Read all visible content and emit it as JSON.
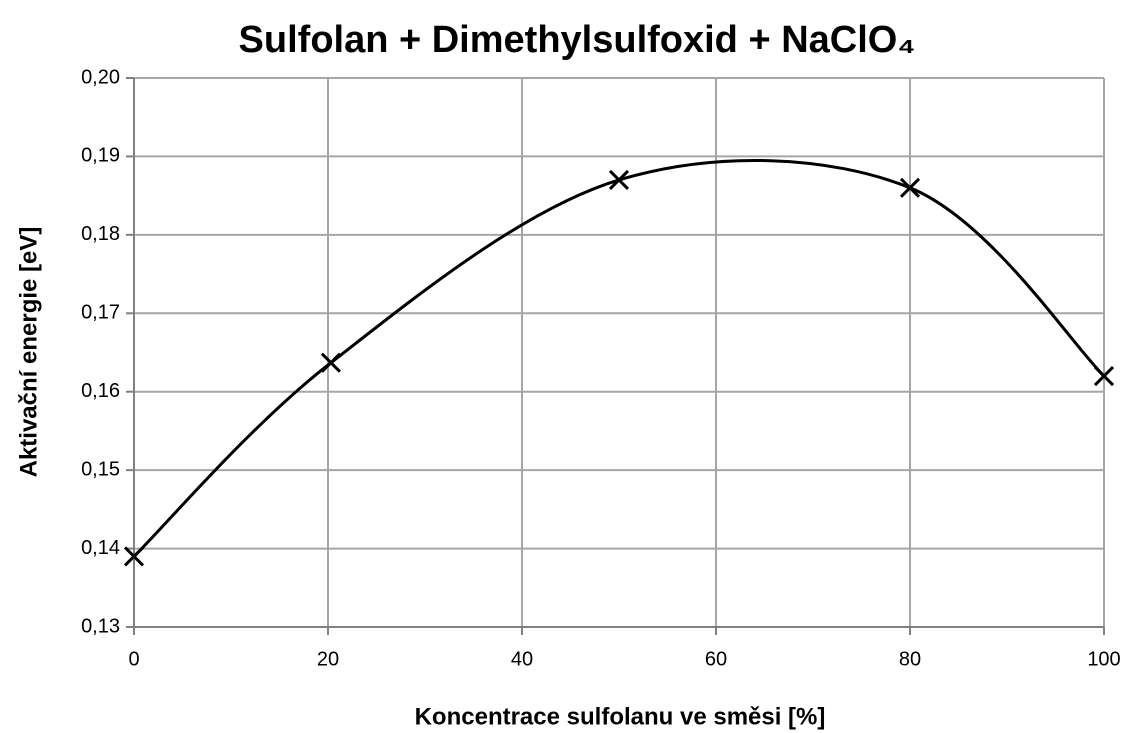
{
  "chart_data": {
    "type": "scatter",
    "title": "Sulfolan + Dimethylsulfoxid + NaClO₄",
    "x_label": "Koncentrace sulfolanu ve směsi [%]",
    "y_label": "Aktivační energie [eV]",
    "series": [
      {
        "name": "Aktivační energie",
        "color": "#000000",
        "x": [
          0,
          20.3,
          50,
          80,
          100
        ],
        "values": [
          0.139,
          0.1637,
          0.187,
          0.186,
          0.162
        ]
      }
    ],
    "xlim": [
      0,
      100
    ],
    "xticks": [
      0,
      20,
      40,
      60,
      80,
      100
    ],
    "ylim": [
      0.13,
      0.2
    ],
    "yticks": [
      {
        "value": 0.13,
        "label": "0,13"
      },
      {
        "value": 0.14,
        "label": "0,14"
      },
      {
        "value": 0.15,
        "label": "0,15"
      },
      {
        "value": 0.16,
        "label": "0,16"
      },
      {
        "value": 0.17,
        "label": "0,17"
      },
      {
        "value": 0.18,
        "label": "0,18"
      },
      {
        "value": 0.19,
        "label": "0,19"
      },
      {
        "value": 0.2,
        "label": "0,20"
      }
    ],
    "grid": true
  }
}
